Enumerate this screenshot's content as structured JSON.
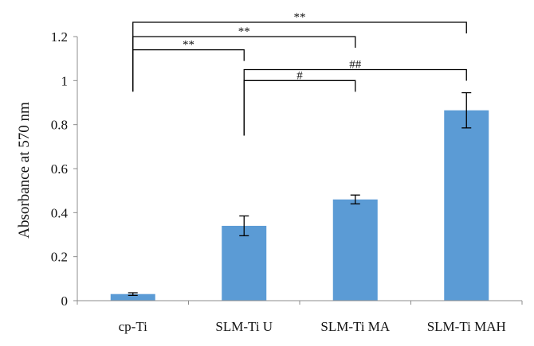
{
  "chart_data": {
    "type": "bar",
    "categories": [
      "cp-Ti",
      "SLM-Ti U",
      "SLM-Ti MA",
      "SLM-Ti MAH"
    ],
    "values": [
      0.03,
      0.34,
      0.46,
      0.865
    ],
    "errors": [
      0.006,
      0.045,
      0.02,
      0.08
    ],
    "title": "",
    "xlabel": "",
    "ylabel": "Absorbance at 570 nm",
    "ylim": [
      0,
      1.2
    ],
    "yticks": [
      {
        "value": 0,
        "label": "0"
      },
      {
        "value": 0.2,
        "label": "0.2"
      },
      {
        "value": 0.4,
        "label": "0.4"
      },
      {
        "value": 0.6,
        "label": "0.6"
      },
      {
        "value": 0.8,
        "label": "0.8"
      },
      {
        "value": 1,
        "label": "1"
      },
      {
        "value": 1.2,
        "label": "1.2"
      }
    ],
    "grid": false,
    "bar_color": "#5b9bd5",
    "significance": [
      {
        "from": 0,
        "to": 3,
        "level": 1.265,
        "label": "**"
      },
      {
        "from": 0,
        "to": 2,
        "level": 1.2,
        "label": "**"
      },
      {
        "from": 0,
        "to": 1,
        "level": 1.14,
        "label": "**"
      },
      {
        "from": 1,
        "to": 3,
        "level": 1.05,
        "label": "##"
      },
      {
        "from": 1,
        "to": 2,
        "level": 1.0,
        "label": "#"
      }
    ]
  }
}
